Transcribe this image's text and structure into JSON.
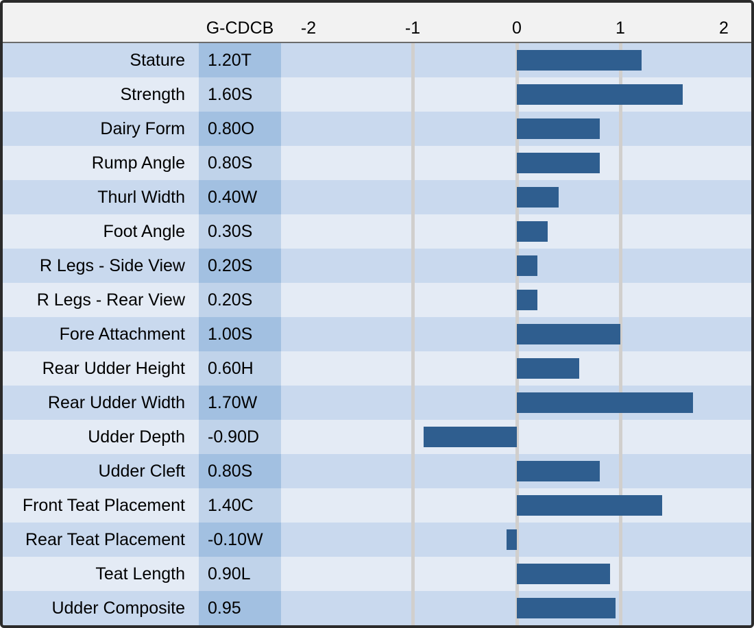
{
  "header": {
    "value_column_label": "G-CDCB",
    "axis_ticks": [
      "-2",
      "-1",
      "0",
      "1",
      "2"
    ]
  },
  "colors": {
    "bar": "#2F5E8F",
    "row_odd_bg": "#C9D9EE",
    "row_even_bg": "#E4EBF5",
    "value_cell_odd_bg": "#A2C0E1",
    "value_cell_even_bg": "#C0D3EA",
    "gridline": "#D1CFCD",
    "header_bg": "#F2F2F2",
    "border": "#2B2B2B"
  },
  "chart_data": {
    "type": "bar",
    "orientation": "horizontal",
    "title": "",
    "value_column_header": "G-CDCB",
    "xlabel": "",
    "ylabel": "",
    "xlim": [
      -2,
      2
    ],
    "x_ticks": [
      -2,
      -1,
      0,
      1,
      2
    ],
    "gridlines_at": [
      -1,
      0,
      1
    ],
    "legend": null,
    "bar_color": "#2F5E8F",
    "categories": [
      "Stature",
      "Strength",
      "Dairy Form",
      "Rump Angle",
      "Thurl Width",
      "Foot Angle",
      "R Legs - Side View",
      "R Legs - Rear View",
      "Fore Attachment",
      "Rear Udder Height",
      "Rear Udder Width",
      "Udder Depth",
      "Udder Cleft",
      "Front Teat Placement",
      "Rear Teat Placement",
      "Teat Length",
      "Udder Composite"
    ],
    "values": [
      1.2,
      1.6,
      0.8,
      0.8,
      0.4,
      0.3,
      0.2,
      0.2,
      1.0,
      0.6,
      1.7,
      -0.9,
      0.8,
      1.4,
      -0.1,
      0.9,
      0.95
    ],
    "value_labels": [
      "1.20T",
      "1.60S",
      "0.80O",
      "0.80S",
      "0.40W",
      "0.30S",
      "0.20S",
      "0.20S",
      "1.00S",
      "0.60H",
      "1.70W",
      "-0.90D",
      "0.80S",
      "1.40C",
      "-0.10W",
      "0.90L",
      "0.95"
    ],
    "rows": [
      {
        "label": "Stature",
        "value_label": "1.20T",
        "value": 1.2
      },
      {
        "label": "Strength",
        "value_label": "1.60S",
        "value": 1.6
      },
      {
        "label": "Dairy Form",
        "value_label": "0.80O",
        "value": 0.8
      },
      {
        "label": "Rump Angle",
        "value_label": "0.80S",
        "value": 0.8
      },
      {
        "label": "Thurl Width",
        "value_label": "0.40W",
        "value": 0.4
      },
      {
        "label": "Foot Angle",
        "value_label": "0.30S",
        "value": 0.3
      },
      {
        "label": "R Legs - Side View",
        "value_label": "0.20S",
        "value": 0.2
      },
      {
        "label": "R Legs - Rear View",
        "value_label": "0.20S",
        "value": 0.2
      },
      {
        "label": "Fore Attachment",
        "value_label": "1.00S",
        "value": 1.0
      },
      {
        "label": "Rear Udder Height",
        "value_label": "0.60H",
        "value": 0.6
      },
      {
        "label": "Rear Udder Width",
        "value_label": "1.70W",
        "value": 1.7
      },
      {
        "label": "Udder Depth",
        "value_label": "-0.90D",
        "value": -0.9
      },
      {
        "label": "Udder Cleft",
        "value_label": "0.80S",
        "value": 0.8
      },
      {
        "label": "Front Teat Placement",
        "value_label": "1.40C",
        "value": 1.4
      },
      {
        "label": "Rear Teat Placement",
        "value_label": "-0.10W",
        "value": -0.1
      },
      {
        "label": "Teat Length",
        "value_label": "0.90L",
        "value": 0.9
      },
      {
        "label": "Udder Composite",
        "value_label": "0.95",
        "value": 0.95
      }
    ]
  }
}
